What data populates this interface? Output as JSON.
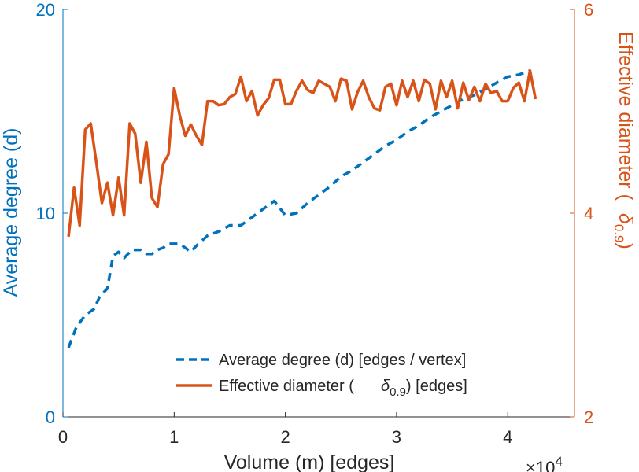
{
  "chart_data": {
    "type": "line",
    "xlabel": "Volume (m) [edges]",
    "x_multiplier": "×10",
    "x_multiplier_exp": "4",
    "xlim": [
      0,
      4.6
    ],
    "xticks": [
      "0",
      "1",
      "2",
      "3",
      "4"
    ],
    "y_left": {
      "label": "Average degree (d)",
      "lim": [
        0,
        20
      ],
      "ticks": [
        "0",
        "10",
        "20"
      ],
      "color": "#0072BD"
    },
    "y_right": {
      "label_prefix": "Effective diameter (",
      "delta_symbol": "δ",
      "delta_subscript": "0.9",
      "label_suffix": ")",
      "lim": [
        2,
        6
      ],
      "ticks": [
        "2",
        "4",
        "6"
      ],
      "color": "#D95319"
    },
    "legend": {
      "placement": "bottom-right",
      "entries": [
        {
          "text": "Average degree (d) [edges / vertex]"
        },
        {
          "prefix": "Effective diameter (",
          "symbol": "δ",
          "subscript": "0.9",
          "suffix": ") [edges]"
        }
      ]
    },
    "series": [
      {
        "name": "Average degree (d) [edges / vertex]",
        "axis": "left",
        "style": "dashed",
        "color": "#0072BD",
        "x": [
          0.05,
          0.12,
          0.2,
          0.28,
          0.33,
          0.4,
          0.45,
          0.5,
          0.55,
          0.62,
          0.7,
          0.75,
          0.8,
          0.85,
          0.9,
          0.95,
          1.0,
          1.05,
          1.1,
          1.15,
          1.2,
          1.3,
          1.4,
          1.5,
          1.6,
          1.7,
          1.8,
          1.9,
          2.0,
          2.1,
          2.2,
          2.3,
          2.4,
          2.5,
          2.6,
          2.7,
          2.8,
          2.9,
          3.0,
          3.1,
          3.2,
          3.3,
          3.4,
          3.5,
          3.6,
          3.7,
          3.8,
          3.9,
          4.0,
          4.1,
          4.2
        ],
        "y": [
          3.4,
          4.4,
          5.0,
          5.3,
          5.9,
          6.3,
          7.9,
          8.1,
          7.8,
          8.2,
          8.2,
          8.0,
          8.0,
          8.2,
          8.3,
          8.5,
          8.5,
          8.5,
          8.3,
          8.1,
          8.4,
          8.9,
          9.1,
          9.4,
          9.4,
          9.8,
          10.2,
          10.6,
          9.9,
          10.0,
          10.5,
          10.9,
          11.3,
          11.8,
          12.1,
          12.5,
          12.9,
          13.3,
          13.6,
          14.0,
          14.3,
          14.7,
          15.0,
          15.3,
          15.6,
          15.8,
          16.1,
          16.4,
          16.7,
          16.8,
          17.0
        ]
      },
      {
        "name": "Effective diameter (δ0.9) [edges]",
        "axis": "right",
        "style": "solid",
        "color": "#D95319",
        "x": [
          0.05,
          0.1,
          0.15,
          0.2,
          0.25,
          0.3,
          0.35,
          0.4,
          0.45,
          0.5,
          0.55,
          0.6,
          0.65,
          0.7,
          0.75,
          0.8,
          0.85,
          0.9,
          0.95,
          1.0,
          1.05,
          1.1,
          1.15,
          1.2,
          1.25,
          1.3,
          1.35,
          1.4,
          1.45,
          1.5,
          1.55,
          1.6,
          1.65,
          1.7,
          1.75,
          1.8,
          1.85,
          1.9,
          1.95,
          2.0,
          2.05,
          2.1,
          2.15,
          2.2,
          2.25,
          2.3,
          2.35,
          2.4,
          2.45,
          2.5,
          2.55,
          2.6,
          2.65,
          2.7,
          2.75,
          2.8,
          2.85,
          2.9,
          2.95,
          3.0,
          3.05,
          3.1,
          3.15,
          3.2,
          3.25,
          3.3,
          3.35,
          3.4,
          3.45,
          3.5,
          3.55,
          3.6,
          3.65,
          3.7,
          3.75,
          3.8,
          3.85,
          3.9,
          3.95,
          4.0,
          4.05,
          4.1,
          4.15,
          4.2,
          4.25
        ],
        "y": [
          3.77,
          4.25,
          3.88,
          4.82,
          4.88,
          4.5,
          4.1,
          4.3,
          3.98,
          4.35,
          3.98,
          4.88,
          4.78,
          4.3,
          4.7,
          4.15,
          4.06,
          4.48,
          4.58,
          5.23,
          4.96,
          4.76,
          4.87,
          4.76,
          4.67,
          5.1,
          5.1,
          5.06,
          5.07,
          5.14,
          5.17,
          5.34,
          5.1,
          5.2,
          4.96,
          5.06,
          5.13,
          5.31,
          5.31,
          5.07,
          5.07,
          5.2,
          5.3,
          5.21,
          5.18,
          5.3,
          5.27,
          5.24,
          5.1,
          5.32,
          5.3,
          5.02,
          5.19,
          5.3,
          5.14,
          5.03,
          5.01,
          5.24,
          5.27,
          5.06,
          5.3,
          5.14,
          5.3,
          5.1,
          5.31,
          5.27,
          5.02,
          5.3,
          5.14,
          5.3,
          5.03,
          5.28,
          5.11,
          5.24,
          5.1,
          5.27,
          5.18,
          5.2,
          5.1,
          5.1,
          5.23,
          5.28,
          5.1,
          5.4,
          5.12
        ]
      }
    ]
  }
}
